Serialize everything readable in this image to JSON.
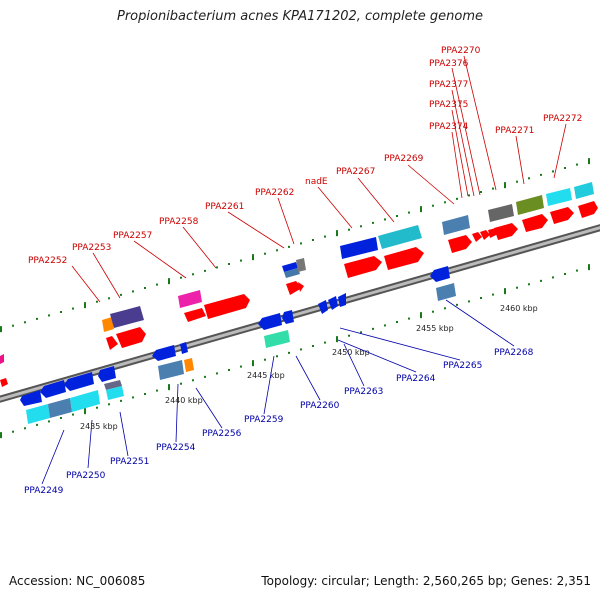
{
  "title": "Propionibacterium acnes KPA171202, complete genome",
  "footer": {
    "accession": "Accession: NC_006085",
    "summary": "Topology: circular; Length: 2,560,265 bp; Genes: 2,351"
  },
  "scale_labels": [
    "2435 kbp",
    "2440 kbp",
    "2445 kbp",
    "2450 kbp",
    "2455 kbp",
    "2460 kbp"
  ],
  "upper_genes": [
    "PPA2252",
    "PPA2253",
    "PPA2257",
    "PPA2258",
    "PPA2261",
    "PPA2262",
    "nadE",
    "PPA2267",
    "PPA2269",
    "PPA2374",
    "PPA2375",
    "PPA2377",
    "PPA2376",
    "PPA2270",
    "PPA2271",
    "PPA2272"
  ],
  "lower_genes": [
    "PPA2249",
    "PPA2250",
    "PPA2251",
    "PPA2254",
    "PPA2256",
    "PPA2259",
    "PPA2260",
    "PPA2263",
    "PPA2264",
    "PPA2265",
    "PPA2268"
  ],
  "colors": {
    "upper_label": "#cc0000",
    "lower_label": "#0000aa",
    "backbone": "#888888",
    "tick": "#1a7a1a"
  }
}
